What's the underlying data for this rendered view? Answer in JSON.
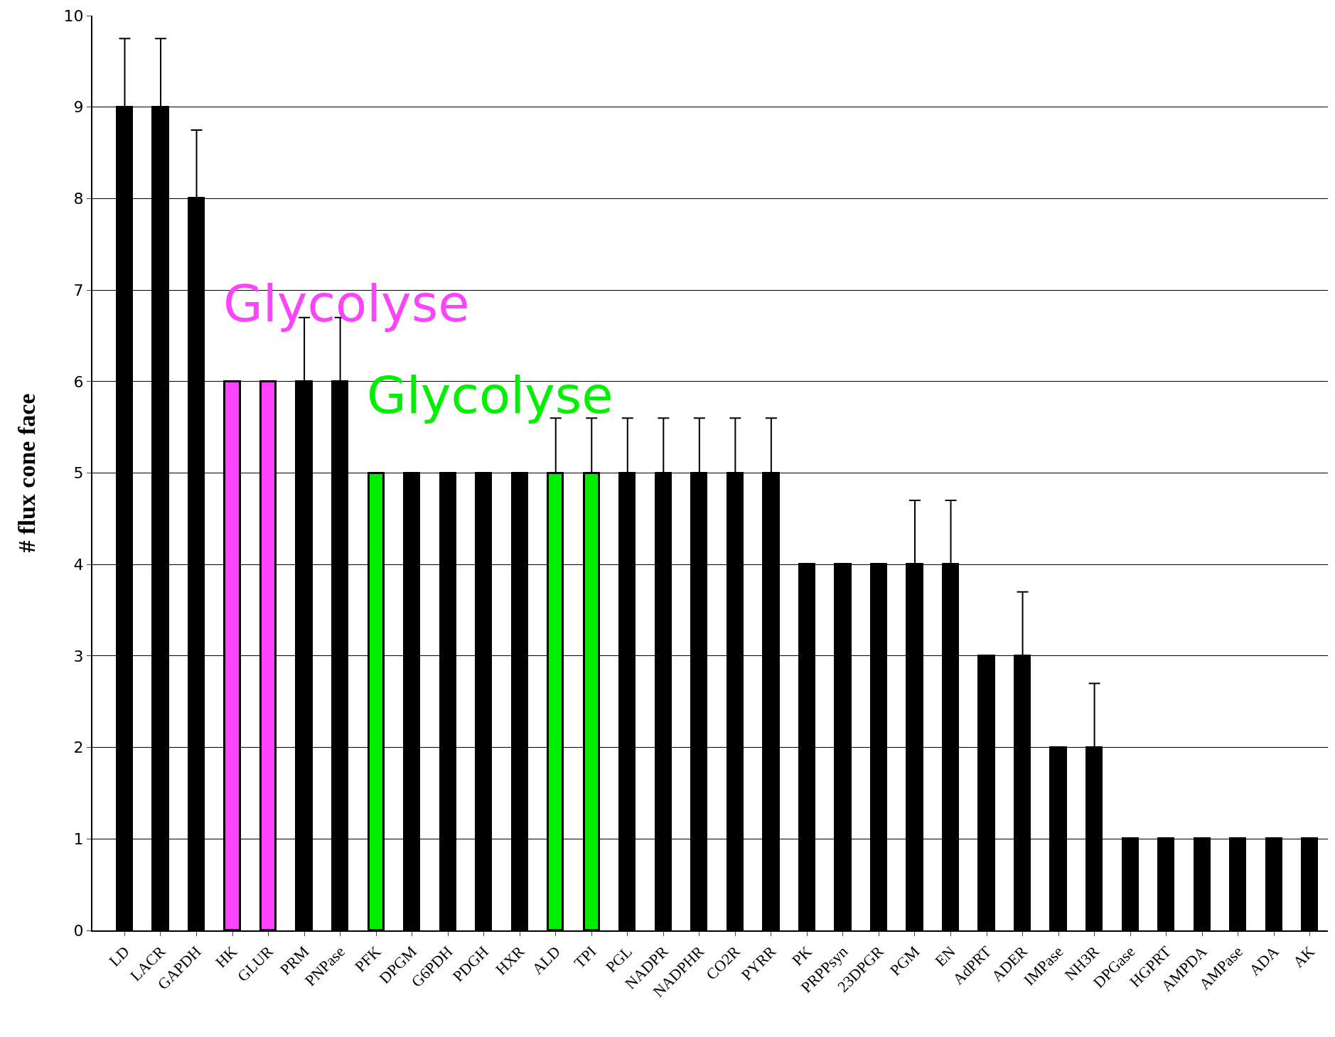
{
  "chart_data": {
    "type": "bar",
    "ylabel": "# flux cone face",
    "categories": [
      "LD",
      "LACR",
      "GAPDH",
      "HK",
      "GLUR",
      "PRM",
      "PNPase",
      "PFK",
      "DPGM",
      "G6PDH",
      "PDGH",
      "HXR",
      "ALD",
      "TPI",
      "PGL",
      "NADPR",
      "NADPHR",
      "CO2R",
      "PYRR",
      "PK",
      "PRPPsyn",
      "23DPGR",
      "PGM",
      "EN",
      "AdPRT",
      "ADER",
      "IMPase",
      "NH3R",
      "DPGase",
      "HGPRT",
      "AMPDA",
      "AMPase",
      "ADA",
      "AK"
    ],
    "values": [
      9,
      9,
      8,
      6,
      6,
      6,
      6,
      5,
      5,
      5,
      5,
      5,
      5,
      5,
      5,
      5,
      5,
      5,
      5,
      4,
      4,
      4,
      4,
      4,
      3,
      3,
      2,
      2,
      1,
      1,
      1,
      1,
      1,
      1
    ],
    "colors": [
      "#000000",
      "#000000",
      "#000000",
      "#ff44ff",
      "#ff44ff",
      "#000000",
      "#000000",
      "#00ee00",
      "#000000",
      "#000000",
      "#000000",
      "#000000",
      "#00ee00",
      "#00ee00",
      "#000000",
      "#000000",
      "#000000",
      "#000000",
      "#000000",
      "#000000",
      "#000000",
      "#000000",
      "#000000",
      "#000000",
      "#000000",
      "#000000",
      "#000000",
      "#000000",
      "#000000",
      "#000000",
      "#000000",
      "#000000",
      "#000000",
      "#000000"
    ],
    "errors": [
      [
        9,
        9.75
      ],
      [
        9,
        9.75
      ],
      [
        8,
        8.75
      ],
      null,
      null,
      [
        6,
        6.7
      ],
      [
        6,
        6.7
      ],
      null,
      null,
      null,
      null,
      null,
      [
        5,
        5.6
      ],
      [
        5,
        5.6
      ],
      [
        5,
        5.6
      ],
      [
        5,
        5.6
      ],
      [
        5,
        5.6
      ],
      [
        5,
        5.6
      ],
      [
        5,
        5.6
      ],
      null,
      null,
      null,
      [
        4,
        4.7
      ],
      [
        4,
        4.7
      ],
      null,
      [
        3,
        3.7
      ],
      null,
      [
        2,
        2.7
      ],
      null,
      null,
      null,
      null,
      null,
      null
    ],
    "annotations": [
      "Glycolyse",
      "Glycolyse"
    ],
    "ylim": [
      0,
      10
    ],
    "yticks": [
      0,
      1,
      2,
      3,
      4,
      5,
      6,
      7,
      8,
      9,
      10
    ],
    "grid": "y"
  }
}
